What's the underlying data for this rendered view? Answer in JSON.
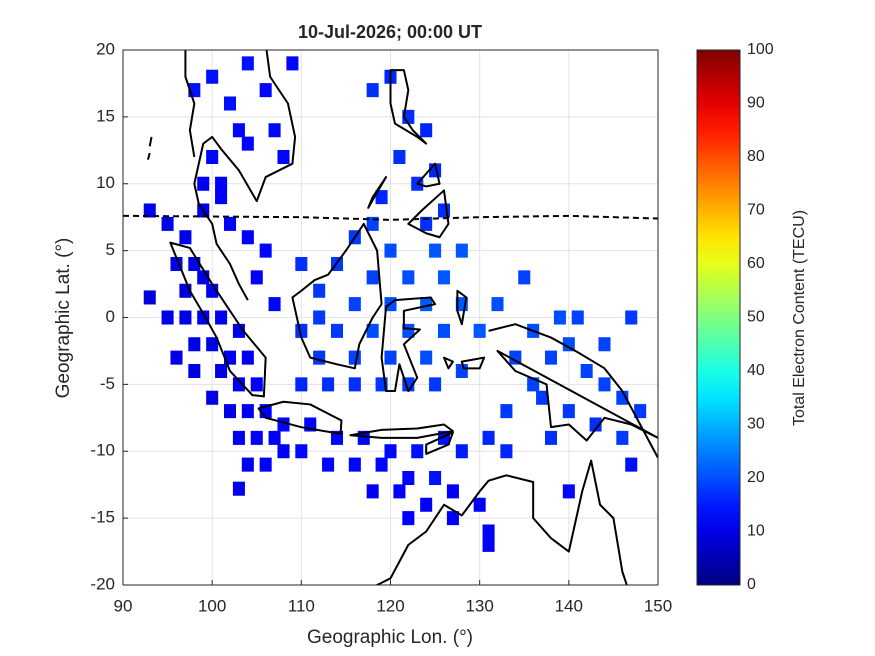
{
  "chart_data": {
    "type": "scatter",
    "title": "10-Jul-2026; 00:00 UT",
    "x_label": "Geographic Lon. (°)",
    "y_label": "Geographic Lat. (°)",
    "colorbar_label": "Total Electron Content (TECU)",
    "colormap": "jet",
    "xlim": [
      90,
      150
    ],
    "ylim": [
      -20,
      20
    ],
    "xticks": [
      90,
      100,
      110,
      120,
      130,
      140,
      150
    ],
    "yticks": [
      -20,
      -15,
      -10,
      -5,
      0,
      5,
      10,
      15,
      20
    ],
    "clim": [
      0,
      100
    ],
    "cticks": [
      0,
      10,
      20,
      30,
      40,
      50,
      60,
      70,
      80,
      90,
      100
    ],
    "grid": true,
    "x": [
      93,
      95,
      97,
      96,
      98,
      99,
      100,
      97,
      93,
      95,
      97,
      99,
      101,
      103,
      98,
      100,
      102,
      104,
      101,
      103,
      105,
      100,
      102,
      104,
      106,
      103,
      105,
      107,
      104,
      106,
      108,
      103,
      99,
      99,
      101,
      102,
      104,
      106,
      105,
      107,
      96,
      98,
      98,
      100,
      102,
      104,
      106,
      107,
      103,
      100,
      101,
      108,
      109,
      104,
      118,
      120,
      122,
      121,
      124,
      123,
      125,
      126,
      124,
      119,
      110,
      112,
      114,
      116,
      118,
      112,
      114,
      116,
      118,
      120,
      122,
      124,
      126,
      128,
      122,
      124,
      120,
      116,
      112,
      110,
      110,
      113,
      116,
      119,
      122,
      125,
      128,
      126,
      130,
      132,
      128,
      125,
      120,
      118,
      108,
      111,
      114,
      117,
      120,
      123,
      126,
      110,
      113,
      116,
      119,
      122,
      125,
      128,
      131,
      133,
      118,
      121,
      124,
      127,
      130,
      122,
      127,
      131,
      131,
      140,
      147,
      134,
      136,
      138,
      140,
      142,
      144,
      146,
      137,
      140,
      143,
      146,
      148,
      135,
      139,
      141,
      147,
      144,
      138,
      133,
      136
    ],
    "y": [
      8,
      7,
      6,
      4,
      4,
      3,
      2,
      2,
      1.5,
      0,
      0,
      0,
      0,
      -1,
      -2,
      -2,
      -3,
      -3,
      -4,
      -5,
      -5,
      -6,
      -7,
      -7,
      -7,
      -9,
      -9,
      -9,
      -11,
      -11,
      -10,
      -12.8,
      8,
      10,
      9,
      7,
      6,
      5,
      3,
      1,
      -3,
      -4,
      17,
      18,
      16,
      19,
      17,
      14,
      14,
      12,
      10,
      12,
      19,
      13,
      17,
      18,
      15,
      12,
      14,
      10,
      11,
      8,
      7,
      9,
      4,
      2,
      4,
      6,
      3,
      0,
      -1,
      1,
      -1,
      1,
      3,
      1,
      3,
      1,
      -1,
      -3,
      -3,
      -3,
      -3,
      -1,
      -5,
      -5,
      -5,
      -5,
      -5,
      -5,
      -4,
      -1,
      -1,
      1,
      5,
      5,
      5,
      7,
      -8,
      -8,
      -9,
      -9,
      -10,
      -10,
      -9,
      -10,
      -11,
      -11,
      -11,
      -12,
      -12,
      -10,
      -9,
      -10,
      -13,
      -13,
      -14,
      -13,
      -14,
      -15,
      -15,
      -16,
      -17,
      -13,
      -11,
      -3,
      -1,
      -3,
      -2,
      -4,
      -5,
      -6,
      -6,
      -7,
      -8,
      -9,
      -7,
      3,
      0,
      0,
      0,
      -2,
      -9,
      -7,
      -5
    ],
    "values": [
      11,
      10,
      11,
      10,
      10,
      10,
      11,
      9,
      9,
      10,
      10,
      11,
      11,
      11,
      10,
      10,
      11,
      11,
      10,
      11,
      12,
      10,
      10,
      11,
      12,
      11,
      12,
      12,
      11,
      12,
      12,
      11,
      11,
      12,
      12,
      12,
      12,
      13,
      12,
      13,
      10,
      10,
      14,
      14,
      14,
      14,
      13,
      13,
      13,
      13,
      12,
      13,
      13,
      13,
      17,
      16,
      17,
      17,
      16,
      17,
      16,
      17,
      17,
      16,
      17,
      18,
      18,
      18,
      19,
      18,
      18,
      19,
      20,
      20,
      20,
      21,
      21,
      21,
      20,
      20,
      19,
      19,
      18,
      17,
      16,
      17,
      17,
      18,
      18,
      18,
      19,
      20,
      21,
      20,
      21,
      21,
      20,
      19,
      13,
      13,
      13,
      13,
      13,
      14,
      14,
      13,
      13,
      13,
      13,
      13,
      14,
      15,
      16,
      16,
      12,
      12,
      12,
      12,
      12,
      12,
      12,
      12,
      12,
      13,
      14,
      19,
      20,
      19,
      20,
      19,
      19,
      19,
      18,
      18,
      17,
      18,
      18,
      19,
      20,
      19,
      18,
      19,
      17,
      18,
      19
    ]
  }
}
